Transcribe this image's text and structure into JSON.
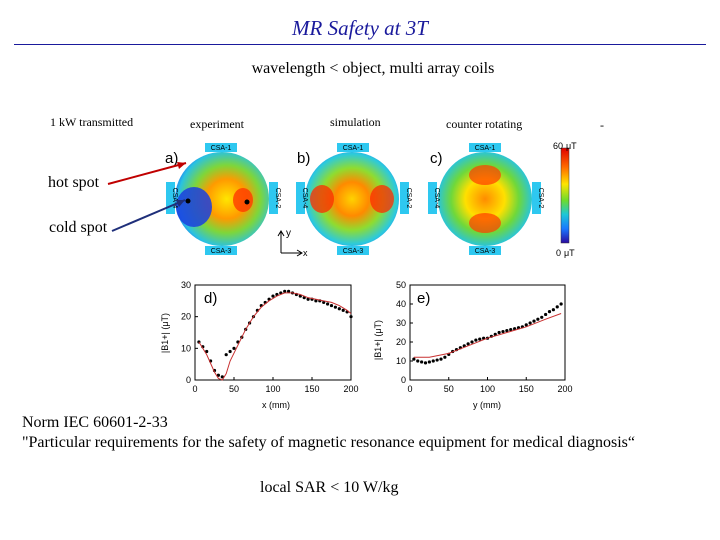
{
  "slide": {
    "title": "MR Safety at 3T",
    "subtitle": "wavelength < object, multi array coils",
    "columns": {
      "transmitted": "1 kW transmitted",
      "experiment": "experiment",
      "simulation": "simulation",
      "counter_rotating": "counter rotating",
      "dash": "-"
    },
    "hot_spot": "hot spot",
    "cold_spot": "cold spot",
    "norm_line1": "Norm IEC 60601-2-33",
    "norm_line2": "\"Particular requirements for the safety of magnetic resonance equipment for medical diagnosis“",
    "sar": "local SAR < 10 W/kg"
  },
  "figure": {
    "panels": [
      {
        "letter": "a)",
        "labels": {
          "top": "CSA-1",
          "bottom": "CSA-3",
          "left": "CSA-4",
          "right": "CSA-2"
        }
      },
      {
        "letter": "b)",
        "labels": {
          "top": "CSA-1",
          "bottom": "CSA-3",
          "left": "CSA-4",
          "right": "CSA-2"
        }
      },
      {
        "letter": "c)",
        "labels": {
          "top": "CSA-1",
          "bottom": "CSA-3",
          "left": "CSA-4",
          "right": "CSA-2"
        }
      }
    ],
    "colorbar": {
      "max_label": "60",
      "unit": "μT",
      "min_label": "0",
      "unit_min": "μT"
    },
    "axes_small": {
      "y": "y",
      "x": "x"
    }
  },
  "chart_data": [
    {
      "type": "line",
      "panel": "d)",
      "xlabel": "x (mm)",
      "ylabel": "|B1+| (μT)",
      "xlim": [
        0,
        200
      ],
      "ylim": [
        0,
        30
      ],
      "xticks": [
        0,
        50,
        100,
        150,
        200
      ],
      "yticks": [
        0,
        10,
        20,
        30
      ],
      "series": [
        {
          "style": "points",
          "x": [
            5,
            10,
            15,
            20,
            25,
            30,
            35,
            40,
            45,
            50,
            55,
            60,
            65,
            70,
            75,
            80,
            85,
            90,
            95,
            100,
            105,
            110,
            115,
            120,
            125,
            130,
            135,
            140,
            145,
            150,
            155,
            160,
            165,
            170,
            175,
            180,
            185,
            190,
            195,
            200
          ],
          "y": [
            12,
            10.5,
            9,
            6,
            3,
            1.5,
            1,
            8,
            9,
            10,
            12,
            13.5,
            16,
            18,
            20,
            22,
            23.5,
            24.5,
            25.5,
            26.5,
            27,
            27.5,
            28,
            28,
            27.5,
            27,
            26.5,
            26,
            25.5,
            25.5,
            25,
            25,
            24.5,
            24,
            23.5,
            23,
            22.5,
            22,
            21.5,
            20
          ]
        },
        {
          "style": "line",
          "x": [
            5,
            15,
            25,
            30,
            35,
            40,
            45,
            55,
            65,
            75,
            85,
            95,
            105,
            115,
            125,
            135,
            145,
            155,
            165,
            175,
            185,
            195,
            200
          ],
          "y": [
            12,
            8,
            2.5,
            0.5,
            0,
            2,
            6,
            11,
            16,
            20,
            23,
            25,
            26.5,
            27.5,
            27.5,
            27,
            26,
            25.5,
            25,
            24.5,
            23.5,
            22,
            21
          ]
        }
      ]
    },
    {
      "type": "line",
      "panel": "e)",
      "xlabel": "y (mm)",
      "ylabel": "|B1+| (μT)",
      "xlim": [
        0,
        200
      ],
      "ylim": [
        0,
        50
      ],
      "xticks": [
        0,
        50,
        100,
        150,
        200
      ],
      "yticks": [
        0,
        10,
        20,
        30,
        40,
        50
      ],
      "series": [
        {
          "style": "points",
          "x": [
            5,
            10,
            15,
            20,
            25,
            30,
            35,
            40,
            45,
            50,
            55,
            60,
            65,
            70,
            75,
            80,
            85,
            90,
            95,
            100,
            105,
            110,
            115,
            120,
            125,
            130,
            135,
            140,
            145,
            150,
            155,
            160,
            165,
            170,
            175,
            180,
            185,
            190,
            195
          ],
          "y": [
            11,
            10,
            9.5,
            9,
            9.5,
            10,
            10.5,
            11,
            12,
            13.5,
            15,
            16,
            17,
            18,
            19,
            20,
            21,
            21.5,
            22,
            22,
            23,
            24,
            25,
            25.5,
            26,
            26.5,
            27,
            27.5,
            28,
            29,
            30,
            31,
            32,
            33,
            34.5,
            36,
            37,
            38.5,
            40
          ]
        },
        {
          "style": "line",
          "x": [
            5,
            25,
            50,
            75,
            100,
            125,
            150,
            175,
            195
          ],
          "y": [
            12,
            12,
            14,
            18,
            22,
            25,
            28,
            32,
            35
          ]
        }
      ]
    }
  ]
}
